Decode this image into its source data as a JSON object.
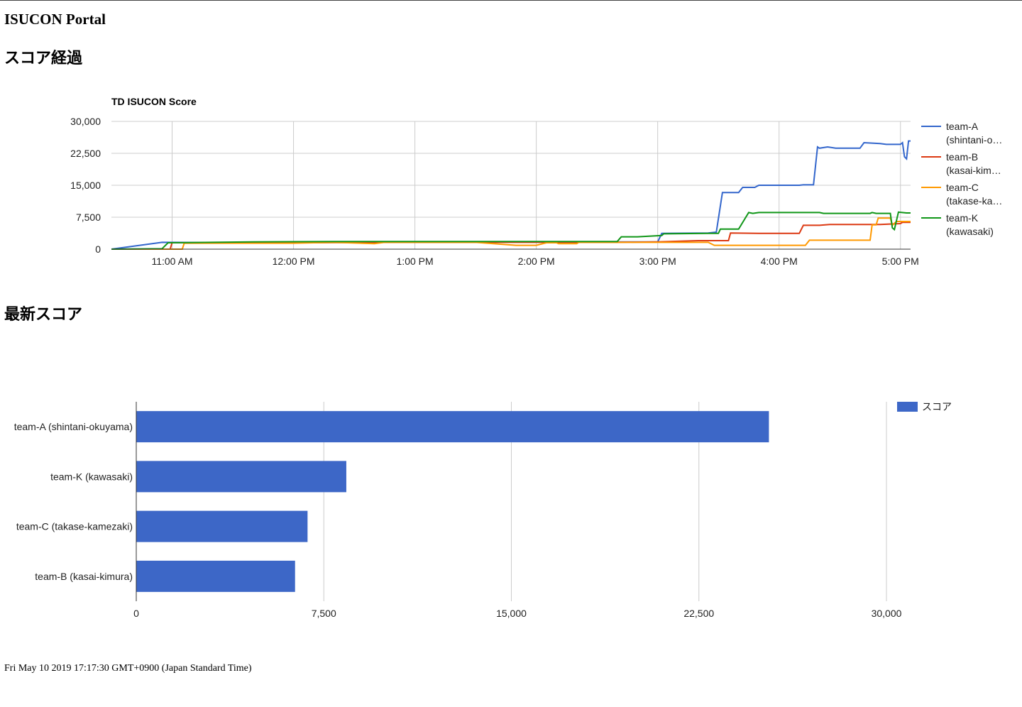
{
  "header": {
    "title": "ISUCON Portal"
  },
  "sections": {
    "progress_title": "スコア経過",
    "latest_title": "最新スコア"
  },
  "footer": {
    "timestamp": "Fri May 10 2019 17:17:30 GMT+0900 (Japan Standard Time)"
  },
  "colors": {
    "team_a": "#3366cc",
    "team_b": "#dc3912",
    "team_c": "#ff9900",
    "team_k": "#109618",
    "bar": "#3d67c7",
    "grid": "#cccccc",
    "axis": "#333333"
  },
  "chart_data": [
    {
      "type": "line",
      "title": "TD ISUCON Score",
      "xlabel": "",
      "ylabel": "",
      "xlim": [
        "10:30 AM",
        "5:05 PM"
      ],
      "ylim": [
        0,
        30000
      ],
      "x_ticks": [
        "11:00 AM",
        "12:00 PM",
        "1:00 PM",
        "2:00 PM",
        "3:00 PM",
        "4:00 PM",
        "5:00 PM"
      ],
      "y_ticks": [
        "0",
        "7,500",
        "15,000",
        "22,500",
        "30,000"
      ],
      "legend_position": "right",
      "grid": true,
      "series": [
        {
          "name": "team-A (shintani-okuyama)",
          "legend_lines": [
            "team-A",
            "(shintani-o…"
          ],
          "color": "#3366cc",
          "points": [
            [
              "10:30",
              0
            ],
            [
              "10:55",
              1600
            ],
            [
              "11:30",
              1500
            ],
            [
              "12:00",
              1600
            ],
            [
              "12:40",
              1700
            ],
            [
              "13:00",
              1600
            ],
            [
              "13:40",
              1700
            ],
            [
              "14:20",
              1700
            ],
            [
              "14:40",
              1700
            ],
            [
              "15:00",
              1700
            ],
            [
              "15:02",
              3700
            ],
            [
              "15:25",
              3800
            ],
            [
              "15:29",
              4000
            ],
            [
              "15:32",
              13300
            ],
            [
              "15:40",
              13300
            ],
            [
              "15:42",
              14500
            ],
            [
              "15:48",
              14500
            ],
            [
              "15:50",
              15000
            ],
            [
              "16:10",
              15000
            ],
            [
              "16:12",
              15100
            ],
            [
              "16:17",
              15100
            ],
            [
              "16:19",
              24000
            ],
            [
              "16:20",
              23700
            ],
            [
              "16:24",
              24000
            ],
            [
              "16:28",
              23700
            ],
            [
              "16:40",
              23700
            ],
            [
              "16:42",
              25000
            ],
            [
              "16:50",
              24800
            ],
            [
              "16:53",
              24600
            ],
            [
              "17:00",
              24600
            ],
            [
              "17:01",
              25000
            ],
            [
              "17:02",
              21700
            ],
            [
              "17:03",
              21200
            ],
            [
              "17:04",
              25400
            ],
            [
              "17:05",
              25400
            ]
          ]
        },
        {
          "name": "team-B (kasai-kimura)",
          "legend_lines": [
            "team-B",
            "(kasai-kim…"
          ],
          "color": "#dc3912",
          "points": [
            [
              "10:30",
              0
            ],
            [
              "10:59",
              0
            ],
            [
              "11:00",
              1500
            ],
            [
              "12:00",
              1500
            ],
            [
              "13:00",
              1600
            ],
            [
              "14:00",
              1600
            ],
            [
              "14:40",
              1600
            ],
            [
              "15:00",
              1700
            ],
            [
              "15:20",
              2000
            ],
            [
              "15:35",
              2000
            ],
            [
              "15:36",
              3800
            ],
            [
              "15:50",
              3700
            ],
            [
              "16:10",
              3700
            ],
            [
              "16:12",
              5600
            ],
            [
              "16:20",
              5600
            ],
            [
              "16:25",
              5800
            ],
            [
              "16:50",
              5800
            ],
            [
              "17:00",
              6000
            ],
            [
              "17:01",
              6300
            ],
            [
              "17:05",
              6300
            ]
          ]
        },
        {
          "name": "team-C (takase-kamezaki)",
          "legend_lines": [
            "team-C",
            "(takase-ka…"
          ],
          "color": "#ff9900",
          "points": [
            [
              "10:30",
              0
            ],
            [
              "11:05",
              0
            ],
            [
              "11:06",
              1400
            ],
            [
              "12:00",
              1400
            ],
            [
              "12:20",
              1600
            ],
            [
              "12:40",
              1300
            ],
            [
              "12:45",
              1600
            ],
            [
              "13:30",
              1600
            ],
            [
              "13:50",
              900
            ],
            [
              "14:00",
              900
            ],
            [
              "14:05",
              1500
            ],
            [
              "14:10",
              1500
            ],
            [
              "14:11",
              1300
            ],
            [
              "14:20",
              1300
            ],
            [
              "14:21",
              1600
            ],
            [
              "15:00",
              1600
            ],
            [
              "15:25",
              1600
            ],
            [
              "15:28",
              900
            ],
            [
              "16:13",
              900
            ],
            [
              "16:15",
              2100
            ],
            [
              "16:45",
              2100
            ],
            [
              "16:46",
              5700
            ],
            [
              "16:48",
              5700
            ],
            [
              "16:49",
              7300
            ],
            [
              "16:55",
              7300
            ],
            [
              "16:56",
              5600
            ],
            [
              "16:58",
              6500
            ],
            [
              "17:05",
              6500
            ]
          ]
        },
        {
          "name": "team-K (kawasaki)",
          "legend_lines": [
            "team-K",
            "(kawasaki)"
          ],
          "color": "#109618",
          "points": [
            [
              "10:30",
              0
            ],
            [
              "10:55",
              100
            ],
            [
              "10:58",
              1500
            ],
            [
              "11:40",
              1700
            ],
            [
              "12:20",
              1800
            ],
            [
              "13:00",
              1800
            ],
            [
              "13:40",
              1800
            ],
            [
              "14:40",
              1800
            ],
            [
              "14:42",
              2900
            ],
            [
              "14:50",
              2900
            ],
            [
              "15:02",
              3200
            ],
            [
              "15:03",
              3600
            ],
            [
              "15:25",
              3700
            ],
            [
              "15:30",
              3700
            ],
            [
              "15:31",
              4700
            ],
            [
              "15:40",
              4700
            ],
            [
              "15:45",
              8600
            ],
            [
              "15:47",
              8400
            ],
            [
              "15:50",
              8600
            ],
            [
              "16:20",
              8600
            ],
            [
              "16:22",
              8400
            ],
            [
              "16:45",
              8400
            ],
            [
              "16:46",
              8600
            ],
            [
              "16:48",
              8400
            ],
            [
              "16:55",
              8400
            ],
            [
              "16:56",
              5000
            ],
            [
              "16:57",
              4600
            ],
            [
              "16:59",
              8700
            ],
            [
              "17:03",
              8500
            ],
            [
              "17:05",
              8500
            ]
          ]
        }
      ]
    },
    {
      "type": "bar",
      "orientation": "horizontal",
      "title": "",
      "categories": [
        "team-A (shintani-okuyama)",
        "team-K (kawasaki)",
        "team-C (takase-kamezaki)",
        "team-B (kasai-kimura)"
      ],
      "series": [
        {
          "name": "スコア",
          "values": [
            25300,
            8400,
            6850,
            6350
          ]
        }
      ],
      "xlim": [
        0,
        30000
      ],
      "x_ticks": [
        "0",
        "7,500",
        "15,000",
        "22,500",
        "30,000"
      ],
      "legend_position": "top-right",
      "grid": true
    }
  ]
}
